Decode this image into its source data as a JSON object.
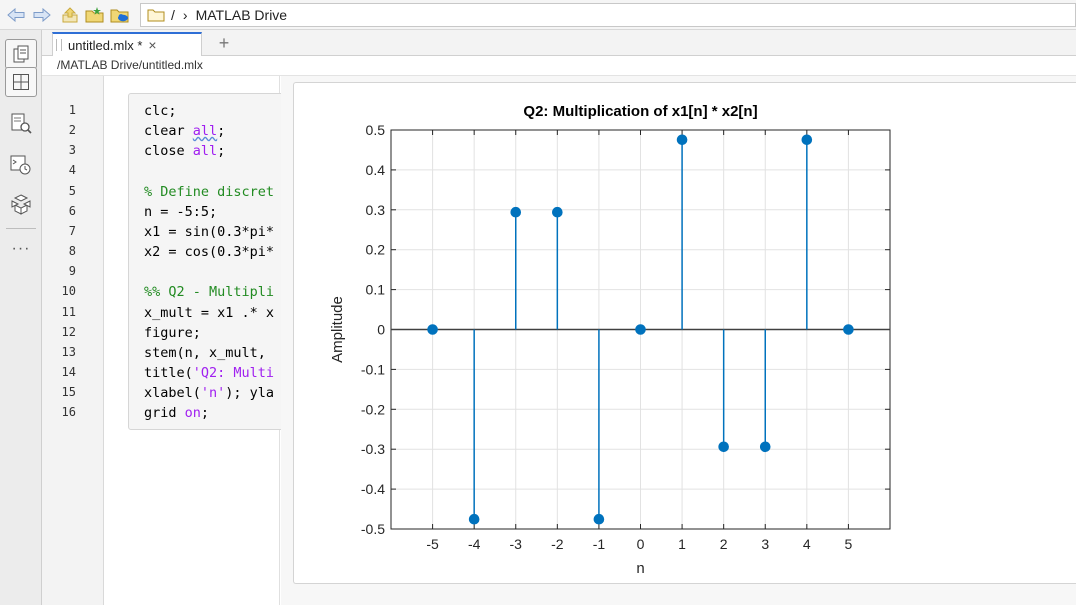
{
  "toolbar": {
    "icons": [
      "back-arrow-icon",
      "forward-arrow-icon",
      "up-folder-icon",
      "new-folder-icon",
      "cloud-folder-icon"
    ],
    "path_root": "/",
    "path_separator": "›",
    "path_current": "MATLAB Drive"
  },
  "rail": {
    "icons": [
      "documents-icon",
      "layout-grid-icon",
      "find-files-icon",
      "command-history-icon",
      "add-ons-icon",
      "more-icon"
    ]
  },
  "tabs": [
    {
      "label": "untitled.mlx *",
      "close": "×"
    }
  ],
  "new_tab": "+",
  "file_path": "/MATLAB Drive/untitled.mlx",
  "editor": {
    "line_numbers": [
      "1",
      "2",
      "3",
      "4",
      "5",
      "6",
      "7",
      "8",
      "9",
      "10",
      "11",
      "12",
      "13",
      "14",
      "15",
      "16"
    ],
    "lines": [
      {
        "n": 1,
        "parts": [
          {
            "t": "clc;",
            "c": ""
          }
        ]
      },
      {
        "n": 2,
        "parts": [
          {
            "t": "clear ",
            "c": ""
          },
          {
            "t": "all",
            "c": "kw squig"
          },
          {
            "t": ";",
            "c": ""
          }
        ]
      },
      {
        "n": 3,
        "parts": [
          {
            "t": "close ",
            "c": ""
          },
          {
            "t": "all",
            "c": "kw"
          },
          {
            "t": ";",
            "c": ""
          }
        ]
      },
      {
        "n": 4,
        "parts": []
      },
      {
        "n": 5,
        "parts": [
          {
            "t": "% Define discret",
            "c": "cm"
          }
        ]
      },
      {
        "n": 6,
        "parts": [
          {
            "t": "n = -5:5;",
            "c": ""
          }
        ]
      },
      {
        "n": 7,
        "parts": [
          {
            "t": "x1 = sin(0.3*pi*",
            "c": ""
          }
        ]
      },
      {
        "n": 8,
        "parts": [
          {
            "t": "x2 = cos(0.3*pi*",
            "c": ""
          }
        ]
      },
      {
        "n": 9,
        "parts": []
      },
      {
        "n": 10,
        "parts": [
          {
            "t": "%% Q2 - Multipli",
            "c": "cm"
          }
        ]
      },
      {
        "n": 11,
        "parts": [
          {
            "t": "x_mult = x1 .* x",
            "c": ""
          }
        ]
      },
      {
        "n": 12,
        "parts": [
          {
            "t": "figure;",
            "c": ""
          }
        ]
      },
      {
        "n": 13,
        "parts": [
          {
            "t": "stem(n, x_mult, ",
            "c": ""
          }
        ]
      },
      {
        "n": 14,
        "parts": [
          {
            "t": "title(",
            "c": ""
          },
          {
            "t": "'Q2: Multi",
            "c": "st"
          }
        ]
      },
      {
        "n": 15,
        "parts": [
          {
            "t": "xlabel(",
            "c": ""
          },
          {
            "t": "'n'",
            "c": "st"
          },
          {
            "t": "); yla",
            "c": ""
          }
        ]
      },
      {
        "n": 16,
        "parts": [
          {
            "t": "grid ",
            "c": ""
          },
          {
            "t": "on",
            "c": "kw"
          },
          {
            "t": ";",
            "c": ""
          }
        ]
      }
    ]
  },
  "chart_data": {
    "type": "stem",
    "title": "Q2: Multiplication of x1[n] * x2[n]",
    "xlabel": "n",
    "ylabel": "Amplitude",
    "x": [
      -5,
      -4,
      -3,
      -2,
      -1,
      0,
      1,
      2,
      3,
      4,
      5
    ],
    "y": [
      0,
      -0.4755,
      0.2939,
      0.2939,
      -0.4755,
      0,
      0.4755,
      -0.2939,
      -0.2939,
      0.4755,
      0
    ],
    "xlim": [
      -6,
      6
    ],
    "ylim": [
      -0.5,
      0.5
    ],
    "xticks": [
      -5,
      -4,
      -3,
      -2,
      -1,
      0,
      1,
      2,
      3,
      4,
      5
    ],
    "xtick_labels": [
      "-5",
      "-4",
      "-3",
      "-2",
      "-1",
      "0",
      "1",
      "2",
      "3",
      "4",
      "5"
    ],
    "yticks": [
      -0.5,
      -0.4,
      -0.3,
      -0.2,
      -0.1,
      0,
      0.1,
      0.2,
      0.3,
      0.4,
      0.5
    ],
    "ytick_labels": [
      "-0.5",
      "-0.4",
      "-0.3",
      "-0.2",
      "-0.1",
      "0",
      "0.1",
      "0.2",
      "0.3",
      "0.4",
      "0.5"
    ],
    "grid": true,
    "color": "#0072bd",
    "baseline_color": "#404040"
  }
}
